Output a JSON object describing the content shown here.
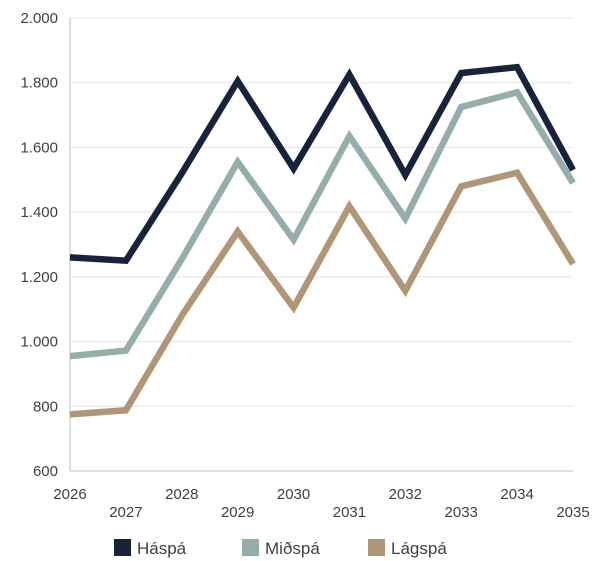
{
  "chart_data": {
    "type": "line",
    "title": "",
    "xlabel": "",
    "ylabel": "",
    "x": [
      "2026",
      "2027",
      "2028",
      "2029",
      "2030",
      "2031",
      "2032",
      "2033",
      "2034",
      "2035"
    ],
    "y_ticks": [
      "600",
      "800",
      "1.000",
      "1.200",
      "1.400",
      "1.600",
      "1.800",
      "2.000"
    ],
    "ylim": [
      600,
      2000
    ],
    "grid": "horizontal",
    "legend_position": "bottom",
    "series": [
      {
        "name": "Háspá",
        "color": "#16233b",
        "values": [
          1260,
          1250,
          1520,
          1805,
          1535,
          1825,
          1515,
          1830,
          1848,
          1530
        ]
      },
      {
        "name": "Miðspá",
        "color": "#95aeab",
        "values": [
          955,
          972,
          1255,
          1555,
          1315,
          1635,
          1380,
          1725,
          1770,
          1490
        ]
      },
      {
        "name": "Lágspá",
        "color": "#ae9677",
        "values": [
          775,
          788,
          1080,
          1340,
          1105,
          1418,
          1157,
          1480,
          1522,
          1240
        ]
      }
    ]
  }
}
